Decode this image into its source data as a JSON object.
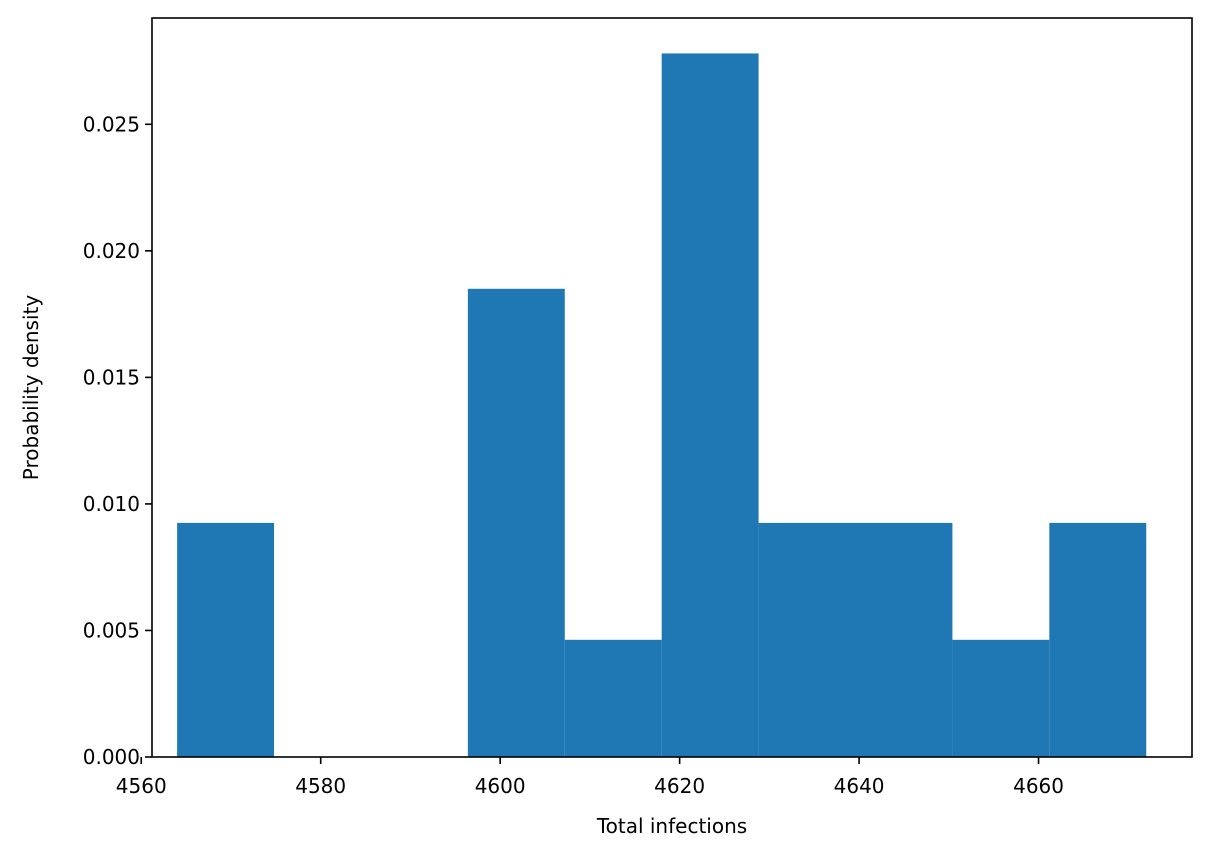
{
  "chart_data": {
    "type": "bar",
    "title": "",
    "xlabel": "Total infections",
    "ylabel": "Probability density",
    "xlim": [
      4561.2,
      4677.1
    ],
    "ylim": [
      0,
      0.0292
    ],
    "grid": false,
    "bar_color": "#1f77b4",
    "bins": [
      {
        "x0": 4564.0,
        "x1": 4574.8,
        "density": 0.00925
      },
      {
        "x0": 4574.8,
        "x1": 4585.6,
        "density": 0.0
      },
      {
        "x0": 4585.6,
        "x1": 4596.4,
        "density": 0.0
      },
      {
        "x0": 4596.4,
        "x1": 4607.2,
        "density": 0.0185
      },
      {
        "x0": 4607.2,
        "x1": 4618.0,
        "density": 0.00463
      },
      {
        "x0": 4618.0,
        "x1": 4628.8,
        "density": 0.0278
      },
      {
        "x0": 4628.8,
        "x1": 4639.6,
        "density": 0.00925
      },
      {
        "x0": 4639.6,
        "x1": 4650.4,
        "density": 0.00925
      },
      {
        "x0": 4650.4,
        "x1": 4661.2,
        "density": 0.00463
      },
      {
        "x0": 4661.2,
        "x1": 4672.0,
        "density": 0.00925
      }
    ],
    "x_ticks": [
      4560,
      4580,
      4600,
      4620,
      4640,
      4660
    ],
    "x_tick_labels": [
      "4560",
      "4580",
      "4600",
      "4620",
      "4640",
      "4660"
    ],
    "y_ticks": [
      0,
      0.005,
      0.01,
      0.015,
      0.02,
      0.025
    ],
    "y_tick_labels": [
      "0.000",
      "0.005",
      "0.010",
      "0.015",
      "0.020",
      "0.025"
    ]
  }
}
